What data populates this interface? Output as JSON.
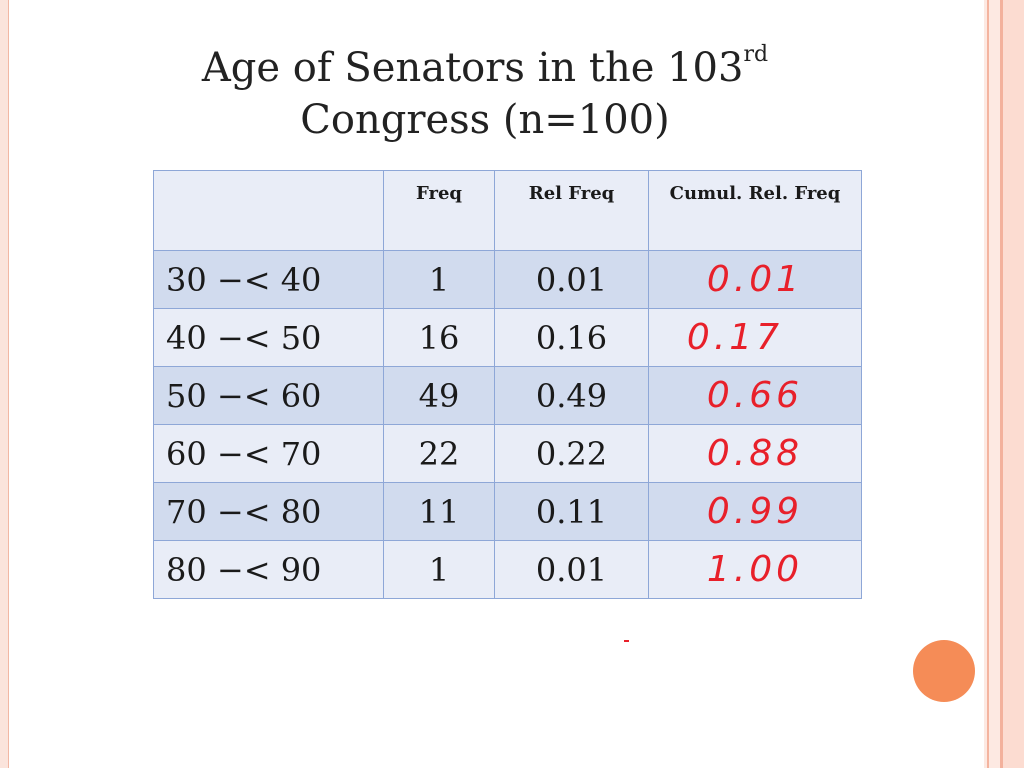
{
  "slide": {
    "title_line1": "Age of Senators in the 103",
    "title_sup": "rd",
    "title_line2": "Congress (n=100)"
  },
  "table": {
    "headers": [
      "",
      "Freq",
      "Rel Freq",
      "Cumul. Rel. Freq"
    ],
    "rows": [
      {
        "class": "30 −< 40",
        "freq": "1",
        "rel": "0.01",
        "cumul": "0.01"
      },
      {
        "class": "40 −< 50",
        "freq": "16",
        "rel": "0.16",
        "cumul": "0.17"
      },
      {
        "class": "50 −< 60",
        "freq": "49",
        "rel": "0.49",
        "cumul": "0.66"
      },
      {
        "class": "60 −< 70",
        "freq": "22",
        "rel": "0.22",
        "cumul": "0.88"
      },
      {
        "class": "70 −< 80",
        "freq": "11",
        "rel": "0.11",
        "cumul": "0.99"
      },
      {
        "class": "80 −< 90",
        "freq": "1",
        "rel": "0.01",
        "cumul": "1.00"
      }
    ]
  },
  "colors": {
    "handwriting": "#e8202a",
    "accent_circle": "#f58c57",
    "table_border": "#8ea7d7"
  }
}
